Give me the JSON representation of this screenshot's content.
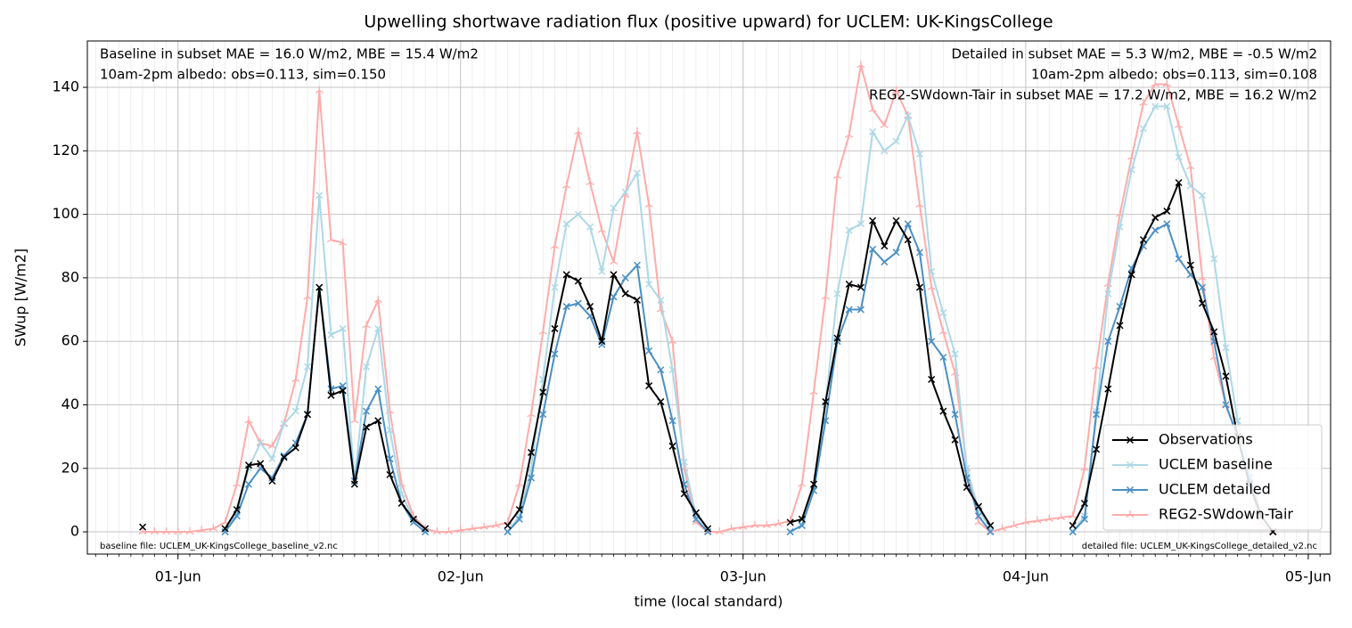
{
  "chart_data": {
    "type": "line",
    "title": "Upwelling shortwave radiation flux (positive upward) for UCLEM: UK-KingsCollege",
    "xlabel": "time (local standard)",
    "ylabel": "SWup [W/m2]",
    "annotations": {
      "baseline_stats": "Baseline in subset MAE = 16.0 W/m2, MBE = 15.4 W/m2",
      "baseline_albedo": "10am-2pm albedo: obs=0.113, sim=0.150",
      "detailed_stats": "Detailed in subset MAE = 5.3 W/m2, MBE = -0.5 W/m2",
      "detailed_albedo": "10am-2pm albedo: obs=0.113, sim=0.108",
      "reg2_stats": "REG2-SWdown-Tair in subset MAE = 17.2 W/m2, MBE = 16.2 W/m2",
      "baseline_file": "baseline file: UCLEM_UK-KingsCollege_baseline_v2.nc",
      "detailed_file": "detailed file: UCLEM_UK-KingsCollege_detailed_v2.nc"
    },
    "x": [
      -3,
      -2,
      -1,
      0,
      1,
      2,
      3,
      4,
      5,
      6,
      7,
      8,
      9,
      10,
      11,
      12,
      13,
      14,
      15,
      16,
      17,
      18,
      19,
      20,
      21,
      22,
      23,
      24,
      25,
      26,
      27,
      28,
      29,
      30,
      31,
      32,
      33,
      34,
      35,
      36,
      37,
      38,
      39,
      40,
      41,
      42,
      43,
      44,
      45,
      46,
      47,
      48,
      49,
      50,
      51,
      52,
      53,
      54,
      55,
      56,
      57,
      58,
      59,
      60,
      61,
      62,
      63,
      64,
      65,
      66,
      67,
      68,
      69,
      70,
      71,
      72,
      73,
      74,
      75,
      76,
      77,
      78,
      79,
      80,
      81,
      82,
      83,
      84,
      85,
      86,
      87,
      88,
      89,
      90,
      91,
      92,
      93
    ],
    "xlim": [
      -7.7,
      97.9
    ],
    "xticks": [
      {
        "value": 0,
        "label": "01-Jun"
      },
      {
        "value": 24,
        "label": "02-Jun"
      },
      {
        "value": 48,
        "label": "03-Jun"
      },
      {
        "value": 72,
        "label": "04-Jun"
      },
      {
        "value": 96,
        "label": "05-Jun"
      }
    ],
    "ylim": [
      -7,
      154.6
    ],
    "yticks": [
      0,
      20,
      40,
      60,
      80,
      100,
      120,
      140
    ],
    "grid": true,
    "legend": "lower right",
    "series": [
      {
        "name": "Observations",
        "color": "#000000",
        "marker": "x",
        "values": [
          1.5,
          null,
          null,
          null,
          null,
          null,
          null,
          1,
          7,
          21,
          21.5,
          16,
          23.5,
          26.5,
          37,
          77,
          43,
          44.5,
          15,
          33,
          35,
          18,
          9,
          4,
          1,
          null,
          null,
          null,
          null,
          null,
          null,
          2,
          7,
          25,
          44,
          64,
          81,
          79,
          71,
          60,
          81,
          75,
          73,
          46,
          41,
          27,
          12,
          6,
          1,
          null,
          null,
          null,
          null,
          null,
          null,
          3,
          4,
          15,
          41,
          61,
          78,
          77,
          98,
          90,
          98,
          92,
          77,
          48,
          38,
          29,
          14,
          8,
          2,
          null,
          null,
          null,
          null,
          null,
          null,
          2,
          9,
          26,
          45,
          65,
          81,
          92,
          99,
          101,
          110,
          84,
          72,
          63,
          49,
          30,
          15,
          5,
          0
        ]
      },
      {
        "name": "UCLEM baseline",
        "color": "#add8e6",
        "marker": "x",
        "values": [
          null,
          null,
          null,
          null,
          null,
          null,
          null,
          0,
          6,
          20,
          28,
          23,
          34,
          38,
          52,
          106,
          62,
          64,
          16,
          52,
          64,
          32,
          12,
          4,
          1,
          null,
          null,
          null,
          null,
          null,
          null,
          0,
          5,
          20,
          48,
          77,
          97,
          100,
          96,
          82,
          102,
          107,
          113,
          78,
          73,
          51,
          22,
          5,
          1,
          null,
          null,
          null,
          null,
          null,
          null,
          0,
          2,
          13,
          40,
          75,
          95,
          97,
          126,
          120,
          123,
          131,
          119,
          82,
          69,
          56,
          20,
          7,
          1,
          null,
          null,
          null,
          null,
          null,
          null,
          0,
          5,
          38,
          75,
          96,
          114,
          127,
          134,
          134,
          118,
          109,
          106,
          86,
          58,
          35,
          20,
          5,
          0
        ]
      },
      {
        "name": "UCLEM detailed",
        "color": "#4a8fc4",
        "marker": "x",
        "values": [
          null,
          null,
          null,
          null,
          null,
          null,
          null,
          0,
          5,
          15,
          20,
          17,
          24,
          28,
          37,
          77,
          45,
          46,
          16,
          38,
          45,
          23,
          9,
          3,
          0,
          null,
          null,
          null,
          null,
          null,
          null,
          0,
          4,
          17,
          37,
          56,
          71,
          72,
          68,
          59,
          74,
          80,
          84,
          57,
          51,
          35,
          15,
          4,
          0,
          null,
          null,
          null,
          null,
          null,
          null,
          0,
          2,
          13,
          35,
          60,
          70,
          70,
          89,
          85,
          88,
          97,
          88,
          60,
          55,
          37,
          17,
          5,
          0,
          null,
          null,
          null,
          null,
          null,
          null,
          0,
          4,
          37,
          60,
          71,
          83,
          90,
          95,
          97,
          86,
          81,
          77,
          60,
          40,
          30,
          17,
          5,
          0
        ]
      },
      {
        "name": "REG2-SWdown-Tair",
        "color": "#ffabab",
        "marker": "tri",
        "values": [
          0,
          0,
          0,
          0,
          0,
          0.5,
          1,
          3,
          15,
          35,
          28,
          27,
          34,
          48,
          74,
          139,
          92,
          91,
          35,
          65,
          73,
          38,
          15,
          5,
          1,
          0,
          0,
          0.5,
          1,
          1.5,
          2,
          3,
          15,
          37,
          63,
          90,
          109,
          126,
          110,
          95,
          85,
          106,
          126,
          103,
          70,
          60,
          20,
          3,
          0,
          0,
          1,
          1.5,
          2,
          2,
          2.5,
          3.5,
          15,
          44,
          74,
          112,
          125,
          147,
          133,
          128,
          139,
          131,
          103,
          77,
          63,
          50,
          20,
          3,
          0,
          1,
          2,
          3,
          3.5,
          4,
          4.5,
          5,
          20,
          52,
          78,
          100,
          118,
          135,
          141,
          141,
          128,
          115,
          80,
          55,
          40,
          30,
          15,
          3,
          0
        ]
      }
    ]
  }
}
